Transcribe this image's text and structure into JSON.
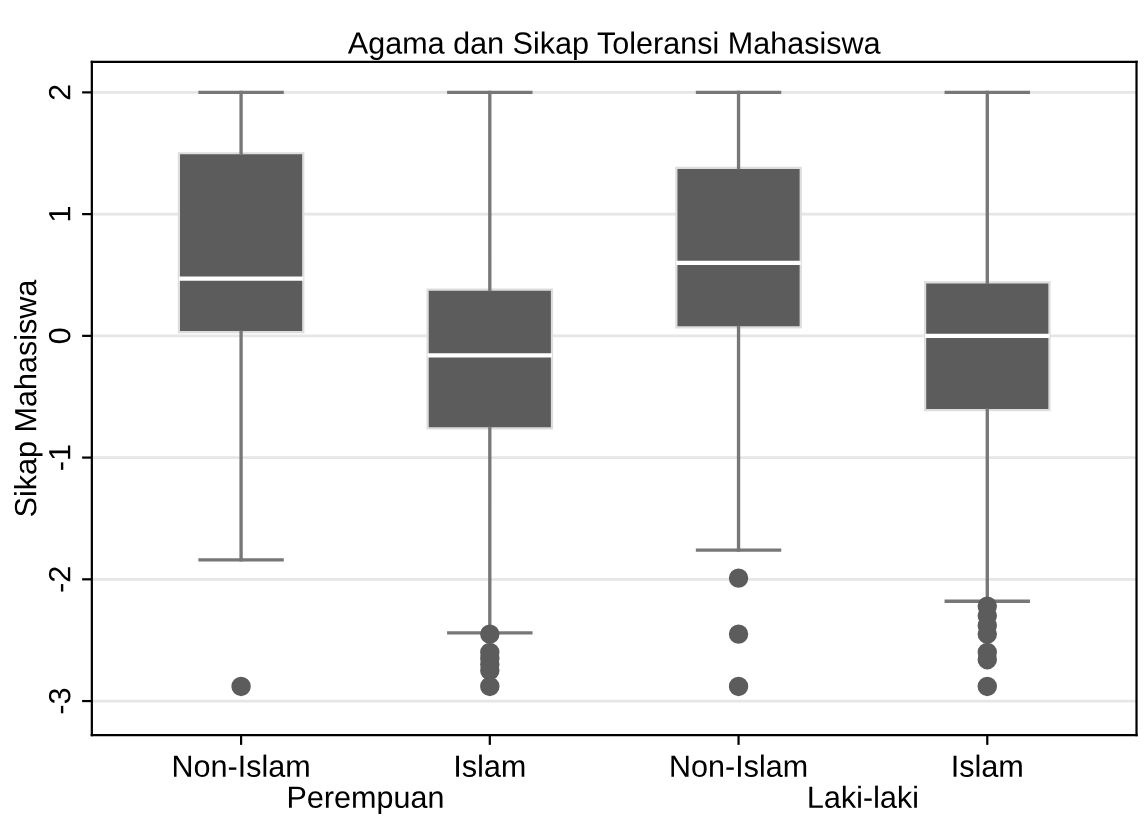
{
  "chart_data": {
    "type": "box",
    "title": "Agama dan Sikap Toleransi Mahasiswa",
    "ylabel": "Sikap Mahasiswa",
    "categories": [
      "Non-Islam",
      "Islam",
      "Non-Islam",
      "Islam"
    ],
    "boxes": [
      {
        "low": -1.84,
        "q1": 0.03,
        "median": 0.47,
        "q3": 1.5,
        "high": 2,
        "outliers": [
          -2.88
        ]
      },
      {
        "low": -2.44,
        "q1": -0.76,
        "median": -0.16,
        "q3": 0.38,
        "high": 2,
        "outliers": [
          -2.45,
          -2.6,
          -2.65,
          -2.7,
          -2.75,
          -2.88
        ]
      },
      {
        "low": -1.76,
        "q1": 0.07,
        "median": 0.6,
        "q3": 1.38,
        "high": 2,
        "outliers": [
          -1.99,
          -2.45,
          -2.88
        ]
      },
      {
        "low": -2.18,
        "q1": -0.61,
        "median": 0.0,
        "q3": 0.44,
        "high": 2,
        "outliers": [
          -2.22,
          -2.3,
          -2.38,
          -2.45,
          -2.6,
          -2.66,
          -2.88
        ]
      }
    ],
    "color": "#5c5c5c",
    "ylim": [
      -3.28,
      2.25
    ],
    "yticks": [
      -3,
      -2,
      -1,
      0,
      1,
      2
    ],
    "grid": "y",
    "annotations": [
      "Perempuan",
      "Laki-laki"
    ]
  }
}
